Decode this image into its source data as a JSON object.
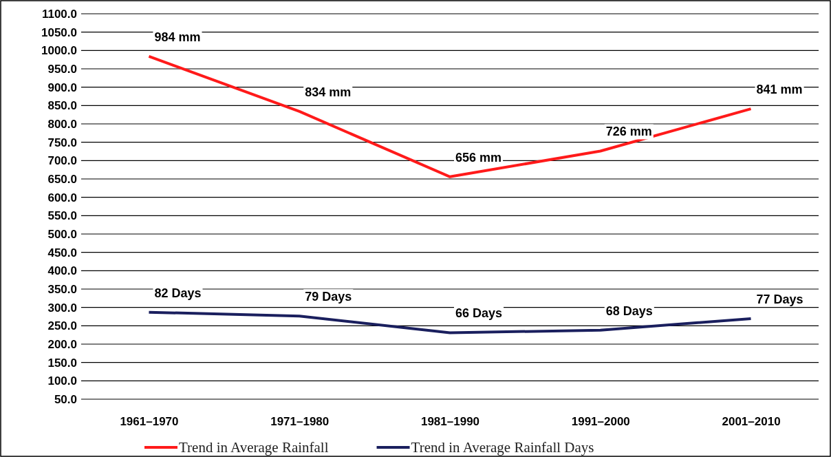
{
  "chart_data": {
    "type": "line",
    "categories": [
      "1961–1970",
      "1971–1980",
      "1981–1990",
      "1991–2000",
      "2001–2010"
    ],
    "ylim": [
      50,
      1100
    ],
    "y2lim": [
      14.3,
      314.3
    ],
    "yticks": [
      {
        "value": 50,
        "label": "50.0"
      },
      {
        "value": 100,
        "label": "100.0"
      },
      {
        "value": 150,
        "label": "150.0"
      },
      {
        "value": 200,
        "label": "200.0"
      },
      {
        "value": 250,
        "label": "250.0"
      },
      {
        "value": 300,
        "label": "300.0"
      },
      {
        "value": 350,
        "label": "350.0"
      },
      {
        "value": 400,
        "label": "400.0"
      },
      {
        "value": 450,
        "label": "450.0"
      },
      {
        "value": 500,
        "label": "500.0"
      },
      {
        "value": 550,
        "label": "550.0"
      },
      {
        "value": 600,
        "label": "600.0"
      },
      {
        "value": 650,
        "label": "650.0"
      },
      {
        "value": 700,
        "label": "700.0"
      },
      {
        "value": 750,
        "label": "750.0"
      },
      {
        "value": 800,
        "label": "800.0"
      },
      {
        "value": 850,
        "label": "850.0"
      },
      {
        "value": 900,
        "label": "900.0"
      },
      {
        "value": 950,
        "label": "950.0"
      },
      {
        "value": 1000,
        "label": "1000.0"
      },
      {
        "value": 1050,
        "label": "1050.0"
      },
      {
        "value": 1100,
        "label": "1100.0"
      }
    ],
    "grid": "y",
    "legend": "bottom",
    "marker": "none",
    "line_style": "solid",
    "series": [
      {
        "name": "Trend in Average Rainfall",
        "color": "#ff1a1a",
        "values": [
          984,
          834,
          656,
          726,
          841
        ],
        "value_labels": [
          "984 mm",
          "834 mm",
          "656 mm",
          "726 mm",
          "841 mm"
        ]
      },
      {
        "name": "Trend in Average Rainfall Days",
        "color": "#1a1f5e",
        "axis": "y2",
        "values": [
          82,
          79,
          66,
          68,
          77
        ],
        "value_labels": [
          "82 Days",
          "79 Days",
          "66 Days",
          "68 Days",
          "77 Days"
        ]
      }
    ]
  }
}
